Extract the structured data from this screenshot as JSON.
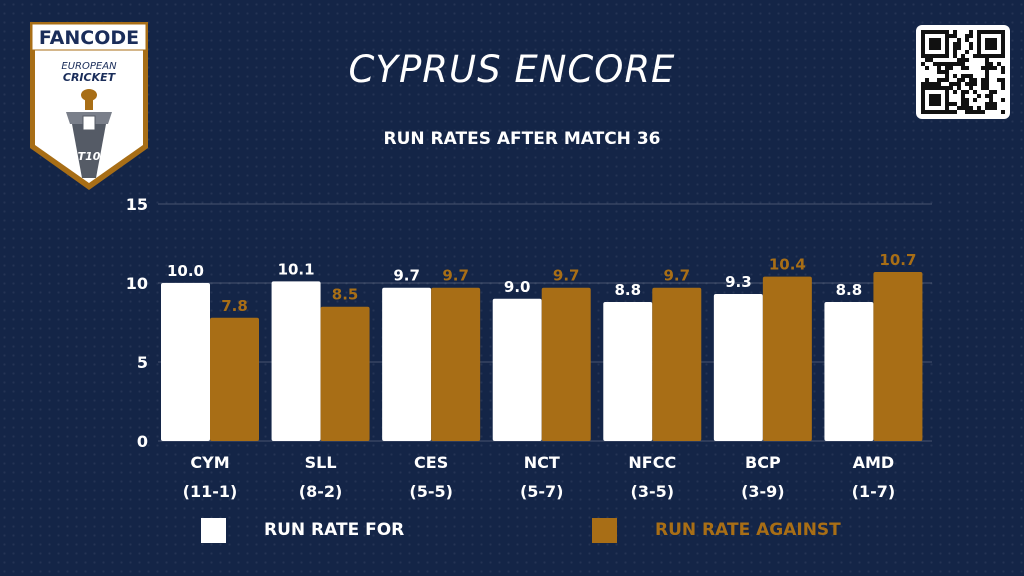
{
  "logo": {
    "brand": "FANCODE",
    "line1": "EUROPEAN",
    "line2": "CRICKET",
    "badge": "T10",
    "icon": "trophy-shield-logo"
  },
  "qr": {
    "icon": "qr-code-icon"
  },
  "colors": {
    "for": "#ffffff",
    "against": "#a86e16",
    "background": "#142547"
  },
  "chart_data": {
    "type": "bar",
    "title": "CYPRUS ENCORE",
    "subtitle": "RUN RATES AFTER MATCH 36",
    "categories": [
      "CYM",
      "SLL",
      "CES",
      "NCT",
      "NFCC",
      "BCP",
      "AMD"
    ],
    "records": [
      "(11-1)",
      "(8-2)",
      "(5-5)",
      "(5-7)",
      "(3-5)",
      "(3-9)",
      "(1-7)"
    ],
    "series": [
      {
        "name": "RUN RATE FOR",
        "values": [
          10.0,
          10.1,
          9.7,
          9.0,
          8.8,
          9.3,
          8.8
        ]
      },
      {
        "name": "RUN RATE AGAINST",
        "values": [
          7.8,
          8.5,
          9.7,
          9.7,
          9.7,
          10.4,
          10.7
        ]
      }
    ],
    "yticks": [
      0,
      5,
      10,
      15
    ],
    "ylim": [
      0,
      15
    ],
    "grid": true,
    "legend": "bottom"
  }
}
